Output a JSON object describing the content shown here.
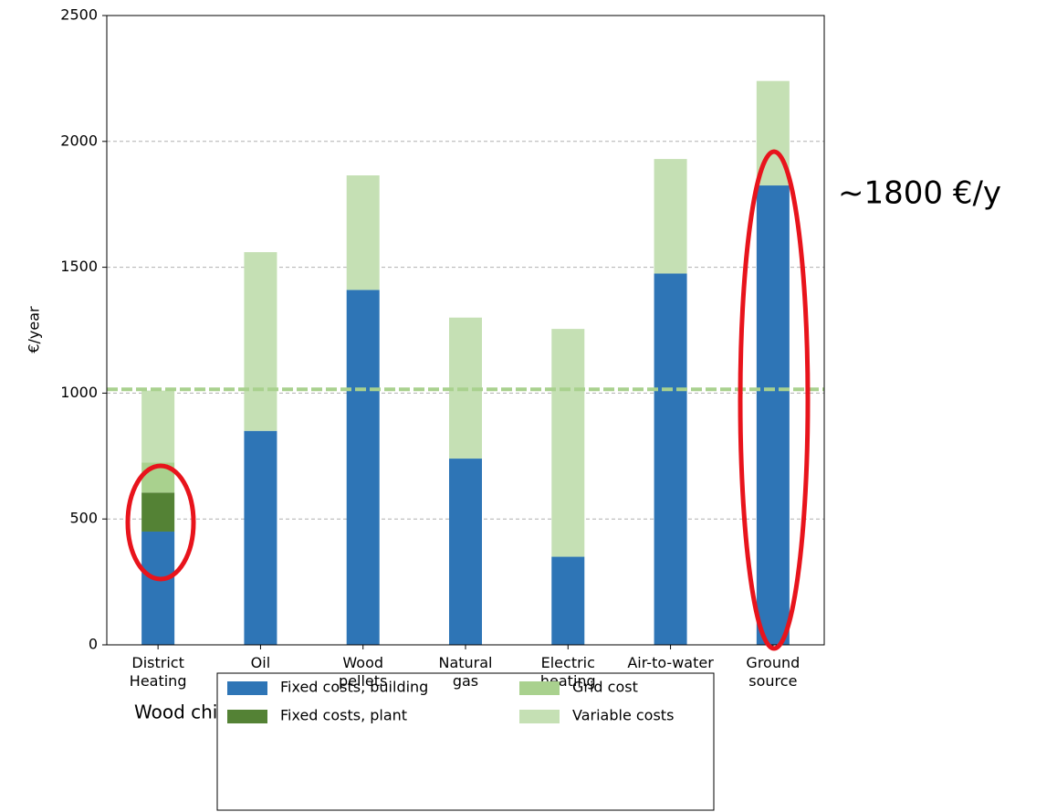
{
  "chart_data": {
    "type": "stacked_bar",
    "y_label": "€/year",
    "categories": [
      [
        "District",
        "Heating"
      ],
      [
        "Oil"
      ],
      [
        "Wood",
        "pellets"
      ],
      [
        "Natural",
        "gas"
      ],
      [
        "Electric",
        "heating"
      ],
      [
        "Air-to-water"
      ],
      [
        "Ground",
        "source"
      ]
    ],
    "series": [
      {
        "name": "Fixed costs, building",
        "color": "#2e75b6",
        "values": [
          450,
          850,
          1410,
          740,
          350,
          1475,
          1825
        ]
      },
      {
        "name": "Fixed costs, plant",
        "color": "#548235",
        "values": [
          155,
          0,
          0,
          0,
          0,
          0,
          0
        ]
      },
      {
        "name": "Grid cost",
        "color": "#a9d18e",
        "values": [
          120,
          0,
          0,
          0,
          0,
          0,
          0
        ]
      },
      {
        "name": "Variable costs",
        "color": "#c5e0b4",
        "values": [
          285,
          710,
          455,
          560,
          905,
          455,
          415
        ]
      }
    ],
    "reference_line": {
      "value": 1015,
      "color": "#a9d18e"
    },
    "ylim": [
      0,
      2500
    ],
    "yticks": [
      0,
      500,
      1000,
      1500,
      2000,
      2500
    ],
    "grid": true,
    "annotations": [
      "~1800 €/y",
      "Wood chip"
    ]
  }
}
